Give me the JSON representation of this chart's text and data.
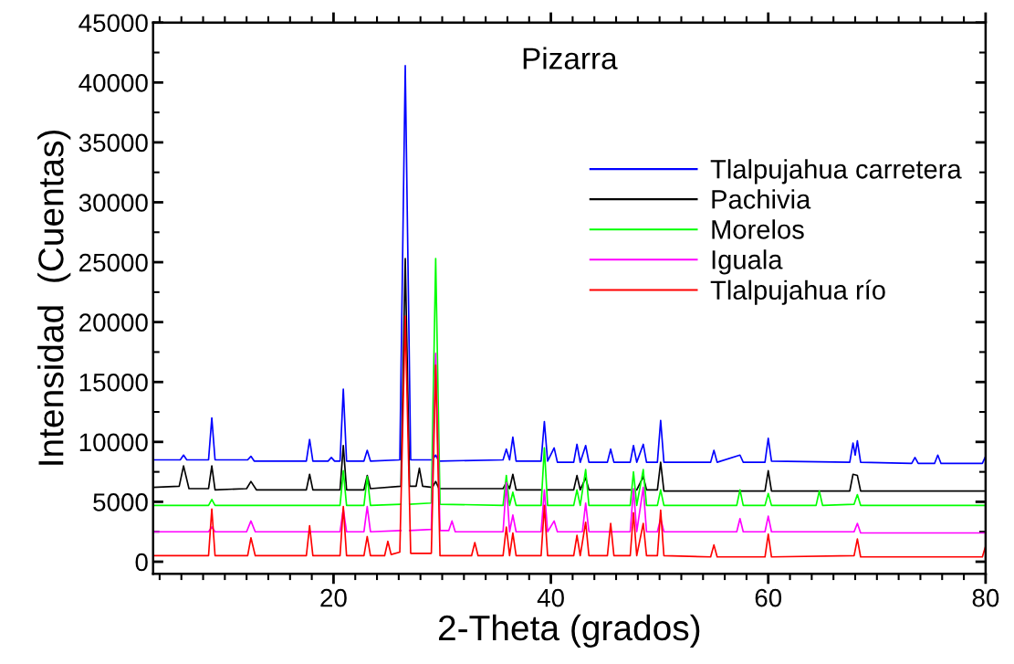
{
  "chart_data": {
    "type": "line",
    "title": "Pizarra",
    "xlabel": "2-Theta (grados)",
    "ylabel": "Intensidad  (Cuentas)",
    "xlim": [
      3.4,
      80
    ],
    "xticks": [
      20,
      40,
      60,
      80
    ],
    "ylim": [
      -1000,
      45000
    ],
    "yticks": [
      0,
      5000,
      10000,
      15000,
      20000,
      25000,
      30000,
      35000,
      40000,
      45000
    ],
    "grid": false,
    "legend": "right",
    "marker": "none",
    "line_style": "solid",
    "series": [
      {
        "name": "Tlalpujahua carretera",
        "color": "#0000ff",
        "x": [
          3.4,
          5.9,
          6.2,
          6.5,
          8.5,
          8.8,
          9.1,
          12.1,
          12.4,
          12.7,
          17.5,
          17.8,
          18.1,
          19.5,
          19.8,
          20.1,
          20.6,
          20.9,
          21.2,
          22.8,
          23.1,
          23.4,
          26.1,
          26.6,
          27.1,
          29.1,
          29.4,
          29.7,
          35.6,
          35.9,
          36.2,
          36.5,
          36.8,
          39.1,
          39.4,
          39.7,
          40.3,
          40.6,
          42.1,
          42.4,
          42.7,
          43.2,
          43.5,
          45.2,
          45.5,
          45.8,
          47.3,
          47.6,
          47.9,
          48.5,
          48.8,
          49.8,
          50.1,
          50.4,
          54.7,
          55.0,
          55.3,
          57.4,
          57.7,
          59.7,
          60.0,
          60.3,
          67.5,
          67.8,
          68.0,
          68.2,
          68.5,
          73.2,
          73.5,
          73.8,
          75.3,
          75.6,
          75.9,
          79.7,
          80
        ],
        "values": [
          8500,
          8500,
          8900,
          8500,
          8500,
          12000,
          8500,
          8500,
          8800,
          8400,
          8400,
          10200,
          8400,
          8400,
          8700,
          8400,
          8400,
          14400,
          8400,
          8400,
          9300,
          8400,
          8500,
          41400,
          8500,
          8500,
          8900,
          8400,
          8500,
          9400,
          8500,
          10400,
          8400,
          8400,
          11700,
          8400,
          9500,
          8300,
          8300,
          9800,
          8300,
          9700,
          8300,
          8300,
          9400,
          8300,
          8300,
          9700,
          8300,
          9800,
          8300,
          8300,
          11800,
          8300,
          8300,
          9300,
          8300,
          8900,
          8300,
          8300,
          10300,
          8400,
          8300,
          9900,
          8900,
          10100,
          8300,
          8200,
          8700,
          8200,
          8200,
          8900,
          8200,
          8200,
          8800
        ]
      },
      {
        "name": "Pachivia",
        "color": "#000000",
        "x": [
          3.4,
          5.8,
          6.2,
          6.7,
          8.5,
          8.8,
          9.1,
          12.0,
          12.4,
          12.9,
          17.5,
          17.8,
          18.1,
          20.6,
          20.9,
          21.2,
          22.8,
          23.1,
          23.4,
          26.2,
          26.6,
          27.0,
          27.6,
          27.9,
          28.2,
          29.1,
          29.4,
          29.7,
          35.6,
          35.9,
          36.2,
          36.5,
          36.8,
          39.1,
          39.4,
          39.7,
          42.1,
          42.4,
          42.7,
          43.2,
          43.5,
          47.3,
          47.6,
          47.9,
          48.5,
          48.8,
          49.8,
          50.1,
          50.4,
          59.7,
          60.0,
          60.3,
          67.5,
          67.8,
          68.2,
          68.5,
          80
        ],
        "values": [
          6200,
          6300,
          8000,
          6100,
          6100,
          8000,
          6000,
          6100,
          6700,
          6000,
          6000,
          7300,
          6000,
          6000,
          9700,
          6000,
          6000,
          7200,
          6100,
          6300,
          25300,
          6300,
          6300,
          7800,
          6300,
          6200,
          6700,
          6100,
          6100,
          6600,
          6100,
          7300,
          6000,
          6000,
          null,
          6000,
          6000,
          7200,
          6000,
          7000,
          6000,
          6000,
          null,
          6000,
          7100,
          6000,
          6000,
          8300,
          5900,
          5900,
          7600,
          5900,
          5900,
          7300,
          7200,
          5900,
          5900
        ]
      },
      {
        "name": "Morelos",
        "color": "#00ff00",
        "x": [
          3.4,
          8.5,
          8.8,
          9.1,
          20.6,
          20.9,
          21.2,
          22.8,
          23.1,
          23.4,
          26.2,
          26.6,
          27.0,
          29.0,
          29.4,
          29.8,
          35.6,
          35.9,
          36.2,
          36.5,
          36.8,
          39.1,
          39.4,
          39.7,
          42.1,
          42.4,
          42.7,
          43.2,
          43.5,
          47.3,
          47.6,
          47.9,
          48.5,
          48.8,
          49.8,
          50.1,
          50.4,
          57.1,
          57.4,
          57.7,
          59.7,
          60.0,
          60.3,
          64.4,
          64.7,
          65.0,
          67.9,
          68.2,
          68.5,
          80
        ],
        "values": [
          4700,
          4700,
          5200,
          4700,
          4700,
          7600,
          4700,
          4700,
          7100,
          4700,
          4800,
          null,
          4800,
          4900,
          25300,
          4800,
          4700,
          7200,
          4700,
          5800,
          4700,
          4700,
          9500,
          4700,
          4700,
          6000,
          4700,
          7700,
          4700,
          4700,
          7500,
          4700,
          7700,
          4700,
          4700,
          6000,
          4700,
          4700,
          6000,
          4700,
          4700,
          5700,
          4700,
          4700,
          5900,
          4700,
          4800,
          5600,
          4700,
          4700
        ]
      },
      {
        "name": "Iguala",
        "color": "#ff00ff",
        "x": [
          3.4,
          8.5,
          8.8,
          9.1,
          12.0,
          12.4,
          12.8,
          20.6,
          20.9,
          21.2,
          22.8,
          23.1,
          23.4,
          26.2,
          26.6,
          27.0,
          29.0,
          29.4,
          29.8,
          30.6,
          30.9,
          31.2,
          35.6,
          35.9,
          36.2,
          36.5,
          36.8,
          39.1,
          39.4,
          39.7,
          40.3,
          40.6,
          42.9,
          43.2,
          43.5,
          47.3,
          47.6,
          47.9,
          48.5,
          48.8,
          49.8,
          50.1,
          50.4,
          57.1,
          57.4,
          57.7,
          59.7,
          60.0,
          60.3,
          67.9,
          68.2,
          68.5,
          80
        ],
        "values": [
          2500,
          2500,
          2900,
          2500,
          2500,
          3400,
          2500,
          2500,
          4400,
          2500,
          2500,
          4600,
          2500,
          2600,
          null,
          2600,
          2700,
          17400,
          2600,
          2600,
          3400,
          2500,
          2500,
          6600,
          2500,
          3900,
          2500,
          2500,
          6000,
          2500,
          3400,
          2500,
          2500,
          4900,
          2500,
          2500,
          6100,
          2500,
          6200,
          2500,
          2500,
          3600,
          2500,
          2500,
          3600,
          2500,
          2500,
          3800,
          2500,
          2500,
          3200,
          2400,
          2400
        ]
      },
      {
        "name": "Tlalpujahua río",
        "color": "#ff0000",
        "x": [
          3.4,
          8.5,
          8.8,
          9.1,
          12.1,
          12.4,
          12.8,
          17.5,
          17.8,
          18.1,
          20.6,
          20.9,
          21.2,
          22.8,
          23.1,
          23.4,
          24.7,
          25.0,
          25.3,
          26.1,
          26.6,
          27.1,
          29.0,
          29.4,
          29.8,
          32.7,
          33.0,
          33.3,
          35.6,
          35.9,
          36.2,
          36.5,
          36.8,
          39.1,
          39.4,
          39.7,
          42.1,
          42.4,
          42.7,
          43.2,
          43.5,
          45.2,
          45.5,
          45.8,
          47.3,
          47.6,
          47.9,
          48.5,
          48.8,
          49.8,
          50.1,
          50.4,
          54.7,
          55.0,
          55.3,
          59.7,
          60.0,
          60.3,
          67.9,
          68.2,
          68.5,
          79.7,
          80
        ],
        "values": [
          500,
          500,
          4400,
          500,
          500,
          2000,
          500,
          500,
          3000,
          500,
          500,
          4600,
          500,
          500,
          2100,
          500,
          500,
          1700,
          600,
          800,
          20500,
          700,
          700,
          16400,
          500,
          500,
          1600,
          500,
          500,
          2900,
          500,
          2400,
          500,
          500,
          4700,
          500,
          500,
          2200,
          500,
          3300,
          500,
          500,
          3200,
          500,
          500,
          4100,
          500,
          3200,
          500,
          500,
          4300,
          500,
          400,
          1400,
          400,
          400,
          2300,
          400,
          500,
          1900,
          400,
          400,
          1300
        ]
      }
    ]
  }
}
